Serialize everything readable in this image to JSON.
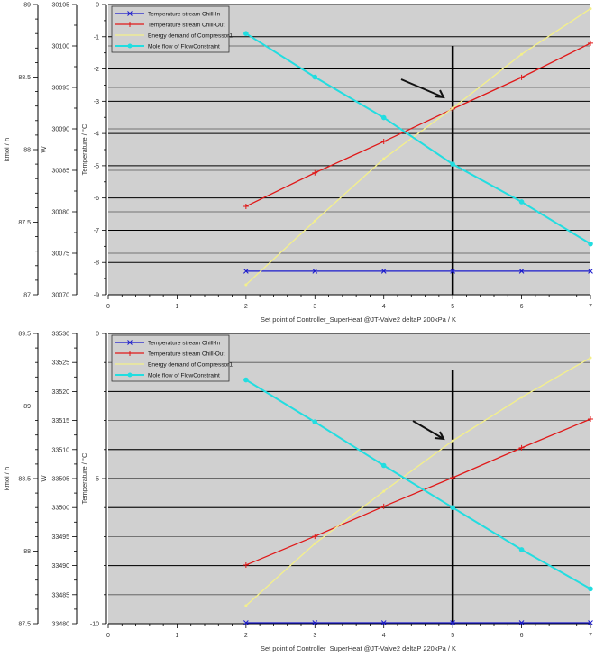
{
  "chart_data": [
    {
      "type": "line",
      "xlabel": "Set point of Controller_SuperHeat @JT-Valve2 deltaP 200kPa / K",
      "x_ticks": [
        "0",
        "1",
        "2",
        "3",
        "4",
        "5",
        "6",
        "7"
      ],
      "xlim": [
        0,
        7
      ],
      "axes": {
        "flow": {
          "label": "kmol / h",
          "lim": [
            87,
            89
          ],
          "ticks": [
            "87",
            "87.5",
            "88",
            "88.5",
            "89"
          ]
        },
        "power": {
          "label": "W",
          "lim": [
            30070,
            30105
          ],
          "ticks": [
            "30070",
            "30075",
            "30080",
            "30085",
            "30090",
            "30095",
            "30100",
            "30105"
          ]
        },
        "temp": {
          "label": "Temperature / °C",
          "lim": [
            -9,
            0
          ],
          "ticks": [
            "-9",
            "-8",
            "-7",
            "-6",
            "-5",
            "-4",
            "-3",
            "-2",
            "-1",
            "0"
          ]
        }
      },
      "marker_line_x": 5,
      "grid": true,
      "legend_position": "top-left",
      "x": [
        2,
        3,
        4,
        5,
        6,
        7
      ],
      "series": [
        {
          "name": "Temperature stream  Chill-In",
          "axis": "temp",
          "color": "#1a1acc",
          "marker": "x",
          "values": [
            -8.27,
            -8.27,
            -8.27,
            -8.27,
            -8.27,
            -8.27
          ]
        },
        {
          "name": "Temperature stream  Chill-Out",
          "axis": "temp",
          "color": "#e01818",
          "marker": "+",
          "values": [
            -6.26,
            -5.22,
            -4.25,
            -3.24,
            -2.26,
            -1.2
          ]
        },
        {
          "name": "Energy demand of Compressor1",
          "axis": "power",
          "color": "#f4f08a",
          "marker": "none",
          "values": [
            30071.2,
            30078.9,
            30086.4,
            30092.5,
            30099.0,
            30104.5
          ]
        },
        {
          "name": "Mole flow of FlowConstraint",
          "axis": "flow",
          "color": "#22dde0",
          "marker": "dot",
          "values": [
            88.8,
            88.5,
            88.22,
            87.9,
            87.64,
            87.35
          ]
        }
      ]
    },
    {
      "type": "line",
      "xlabel": "Set point of Controller_SuperHeat @JT-Valve2 deltaP 220kPa / K",
      "x_ticks": [
        "0",
        "1",
        "2",
        "3",
        "4",
        "5",
        "6",
        "7"
      ],
      "xlim": [
        0,
        7
      ],
      "axes": {
        "flow": {
          "label": "kmol / h",
          "lim": [
            87.5,
            89.5
          ],
          "ticks": [
            "87.5",
            "88",
            "88.5",
            "89",
            "89.5"
          ]
        },
        "power": {
          "label": "W",
          "lim": [
            33480,
            33530
          ],
          "ticks": [
            "33480",
            "33485",
            "33490",
            "33495",
            "33500",
            "33505",
            "33510",
            "33515",
            "33520",
            "33525",
            "33530"
          ]
        },
        "temp": {
          "label": "Temperature / °C",
          "lim": [
            -10,
            0
          ],
          "ticks": [
            "-10",
            "-5",
            "0"
          ]
        }
      },
      "marker_line_x": 5,
      "grid": true,
      "legend_position": "top-left",
      "x": [
        2,
        3,
        4,
        5,
        6,
        7
      ],
      "series": [
        {
          "name": "Temperature stream  Chill-In",
          "axis": "temp",
          "color": "#1a1acc",
          "marker": "x",
          "values": [
            -9.97,
            -9.97,
            -9.97,
            -9.97,
            -9.97,
            -9.97
          ]
        },
        {
          "name": "Temperature stream  Chill-Out",
          "axis": "temp",
          "color": "#e01818",
          "marker": "+",
          "values": [
            -7.98,
            -6.99,
            -5.96,
            -4.97,
            -3.94,
            -2.95
          ]
        },
        {
          "name": "Energy demand of Compressor1",
          "axis": "power",
          "color": "#f4f08a",
          "marker": "none",
          "values": [
            33483.1,
            33493.8,
            33502.8,
            33511.5,
            33519.0,
            33525.8
          ]
        },
        {
          "name": "Mole flow of FlowConstraint",
          "axis": "flow",
          "color": "#22dde0",
          "marker": "dot",
          "values": [
            89.18,
            88.89,
            88.59,
            88.3,
            88.01,
            87.74
          ]
        }
      ]
    }
  ]
}
